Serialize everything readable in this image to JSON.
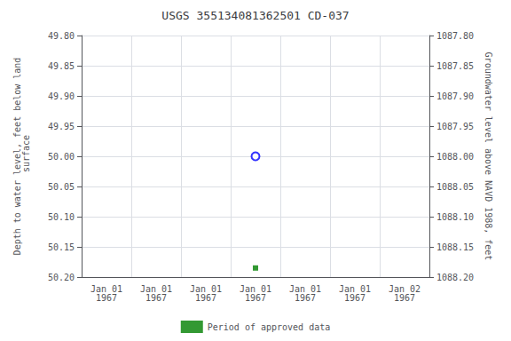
{
  "chart_data": {
    "type": "scatter",
    "title": "USGS 355134081362501 CD-037",
    "x_label": null,
    "y_label": "Depth to water level, feet below land\n surface",
    "y2_label": "Groundwater level above NAVD 1988, feet",
    "categories": [
      "Jan 01\n1967",
      "Jan 01\n1967",
      "Jan 01\n1967",
      "Jan 01\n1967",
      "Jan 01\n1967",
      "Jan 01\n1967",
      "Jan 02\n1967"
    ],
    "series": [
      {
        "color": "blue",
        "marker": "open_circle",
        "values": [
          null,
          null,
          null,
          50,
          null,
          null,
          null
        ]
      },
      {
        "name": "Period of approved data",
        "color": "#008000",
        "marker": "square",
        "values": [
          null,
          null,
          null,
          50.185,
          null,
          null,
          null
        ]
      }
    ],
    "ylim": [
      50.2,
      49.8
    ],
    "yticks": [
      {
        "value": 49.8,
        "label": "49.80"
      },
      {
        "value": 49.85,
        "label": "49.85"
      },
      {
        "value": 49.9,
        "label": "49.90"
      },
      {
        "value": 49.95,
        "label": "49.95"
      },
      {
        "value": 50,
        "label": "50.00"
      },
      {
        "value": 50.05,
        "label": "50.05"
      },
      {
        "value": 50.1,
        "label": "50.10"
      },
      {
        "value": 50.15,
        "label": "50.15"
      },
      {
        "value": 50.2,
        "label": "50.20"
      }
    ],
    "y2lim": [
      1088.2,
      1087.8
    ],
    "y2ticks": [
      {
        "value": 1088.2,
        "label": "1088.20"
      },
      {
        "value": 1088.15,
        "label": "1088.15"
      },
      {
        "value": 1088.1,
        "label": "1088.10"
      },
      {
        "value": 1088.05,
        "label": "1088.05"
      },
      {
        "value": 1088,
        "label": "1088.00"
      },
      {
        "value": 1087.95,
        "label": "1087.95"
      },
      {
        "value": 1087.9,
        "label": "1087.90"
      },
      {
        "value": 1087.85,
        "label": "1087.85"
      },
      {
        "value": 1087.8,
        "label": "1087.80"
      }
    ],
    "grid": true,
    "legend": "bottom"
  }
}
